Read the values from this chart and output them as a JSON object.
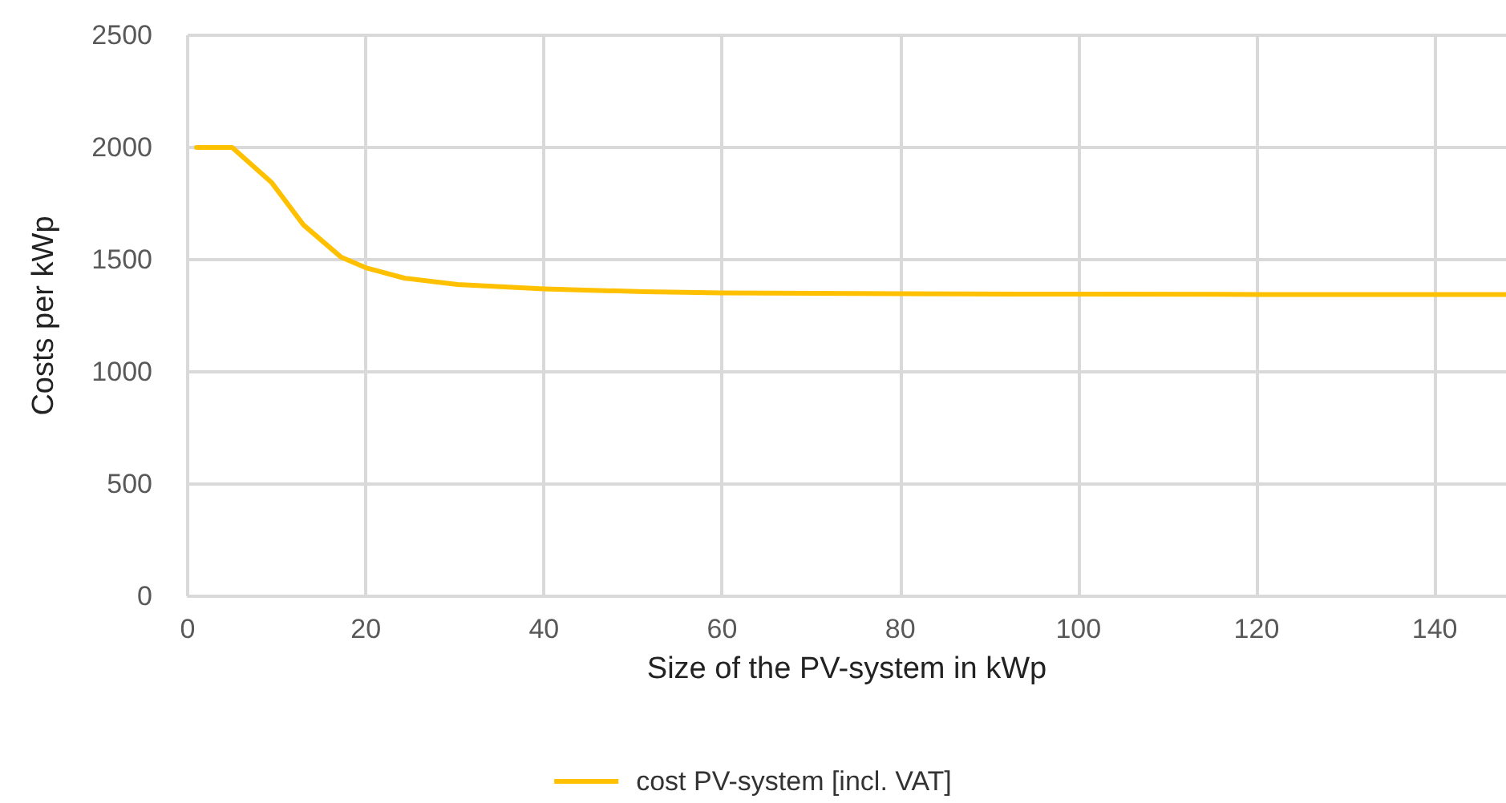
{
  "chart_data": {
    "type": "line",
    "xlabel": "Size of the PV-system in kWp",
    "ylabel": "Costs per kWp",
    "x": [
      1,
      5,
      9.4,
      13,
      17.2,
      20,
      24.4,
      30.3,
      40,
      51.3,
      60,
      80,
      100,
      120,
      148
    ],
    "series": [
      {
        "name": "cost PV-system [incl. VAT]",
        "color": "#ffc000",
        "values": [
          2000,
          2000,
          1845,
          1655,
          1512,
          1464,
          1417,
          1389,
          1370,
          1357,
          1352,
          1348,
          1346,
          1345,
          1345
        ]
      }
    ],
    "xlim": [
      0,
      148
    ],
    "xticks": [
      0,
      20,
      40,
      60,
      80,
      100,
      120,
      140
    ],
    "ylim": [
      0,
      2500
    ],
    "yticks": [
      0,
      500,
      1000,
      1500,
      2000,
      2500
    ],
    "grid": true,
    "legend": "bottom",
    "marker": "none",
    "line_style": "solid"
  }
}
